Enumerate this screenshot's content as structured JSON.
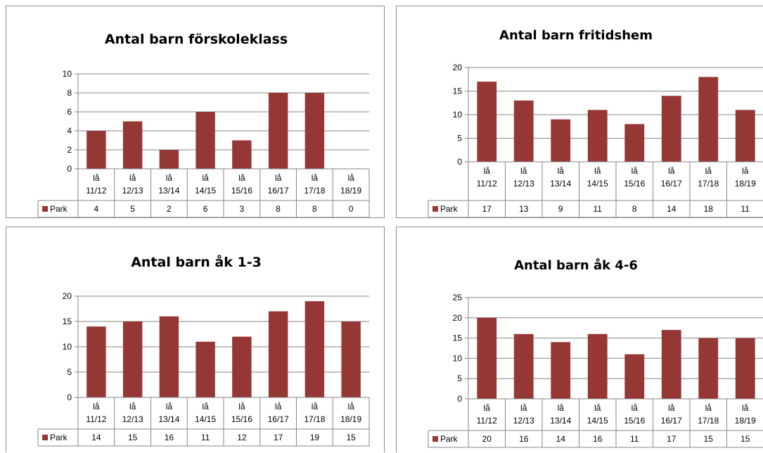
{
  "chart_data": [
    {
      "type": "bar",
      "title": "Antal barn förskoleklass",
      "categories": [
        [
          "lå",
          "11/12"
        ],
        [
          "lå",
          "12/13"
        ],
        [
          "lå",
          "13/14"
        ],
        [
          "lå",
          "14/15"
        ],
        [
          "lå",
          "15/16"
        ],
        [
          "lå",
          "16/17"
        ],
        [
          "lå",
          "17/18"
        ],
        [
          "lå",
          "18/19"
        ]
      ],
      "series": [
        {
          "name": "Park",
          "values": [
            4,
            5,
            2,
            6,
            3,
            8,
            8,
            0
          ]
        }
      ],
      "ylim": [
        0,
        10
      ],
      "yticks": [
        0,
        2,
        4,
        6,
        8,
        10
      ],
      "grid": true,
      "legend": "data-table",
      "colors": {
        "bar": "#953735",
        "grid": "#868686"
      }
    },
    {
      "type": "bar",
      "title": "Antal barn fritidshem",
      "categories": [
        [
          "lå",
          "11/12"
        ],
        [
          "lå",
          "12/13"
        ],
        [
          "lå",
          "13/14"
        ],
        [
          "lå",
          "14/15"
        ],
        [
          "lå",
          "15/16"
        ],
        [
          "lå",
          "16/17"
        ],
        [
          "lå",
          "17/18"
        ],
        [
          "lå",
          "18/19"
        ]
      ],
      "series": [
        {
          "name": "Park",
          "values": [
            17,
            13,
            9,
            11,
            8,
            14,
            18,
            11
          ]
        }
      ],
      "ylim": [
        0,
        20
      ],
      "yticks": [
        0,
        5,
        10,
        15,
        20
      ],
      "grid": true,
      "legend": "data-table",
      "colors": {
        "bar": "#953735",
        "grid": "#868686"
      }
    },
    {
      "type": "bar",
      "title": "Antal barn åk 1-3",
      "categories": [
        [
          "lå",
          "11/12"
        ],
        [
          "lå",
          "12/13"
        ],
        [
          "lå",
          "13/14"
        ],
        [
          "lå",
          "14/15"
        ],
        [
          "lå",
          "15/16"
        ],
        [
          "lå",
          "16/17"
        ],
        [
          "lå",
          "17/18"
        ],
        [
          "lå",
          "18/19"
        ]
      ],
      "series": [
        {
          "name": "Park",
          "values": [
            14,
            15,
            16,
            11,
            12,
            17,
            19,
            15
          ]
        }
      ],
      "ylim": [
        0,
        20
      ],
      "yticks": [
        0,
        5,
        10,
        15,
        20
      ],
      "grid": true,
      "legend": "data-table",
      "colors": {
        "bar": "#953735",
        "grid": "#868686"
      }
    },
    {
      "type": "bar",
      "title": "Antal barn åk 4-6",
      "categories": [
        [
          "lå",
          "11/12"
        ],
        [
          "lå",
          "12/13"
        ],
        [
          "lå",
          "13/14"
        ],
        [
          "lå",
          "14/15"
        ],
        [
          "lå",
          "15/16"
        ],
        [
          "lå",
          "16/17"
        ],
        [
          "lå",
          "17/18"
        ],
        [
          "lå",
          "18/19"
        ]
      ],
      "series": [
        {
          "name": "Park",
          "values": [
            20,
            16,
            14,
            16,
            11,
            17,
            15,
            15
          ]
        }
      ],
      "ylim": [
        0,
        25
      ],
      "yticks": [
        0,
        5,
        10,
        15,
        20,
        25
      ],
      "grid": true,
      "legend": "data-table",
      "colors": {
        "bar": "#953735",
        "grid": "#868686"
      }
    }
  ]
}
